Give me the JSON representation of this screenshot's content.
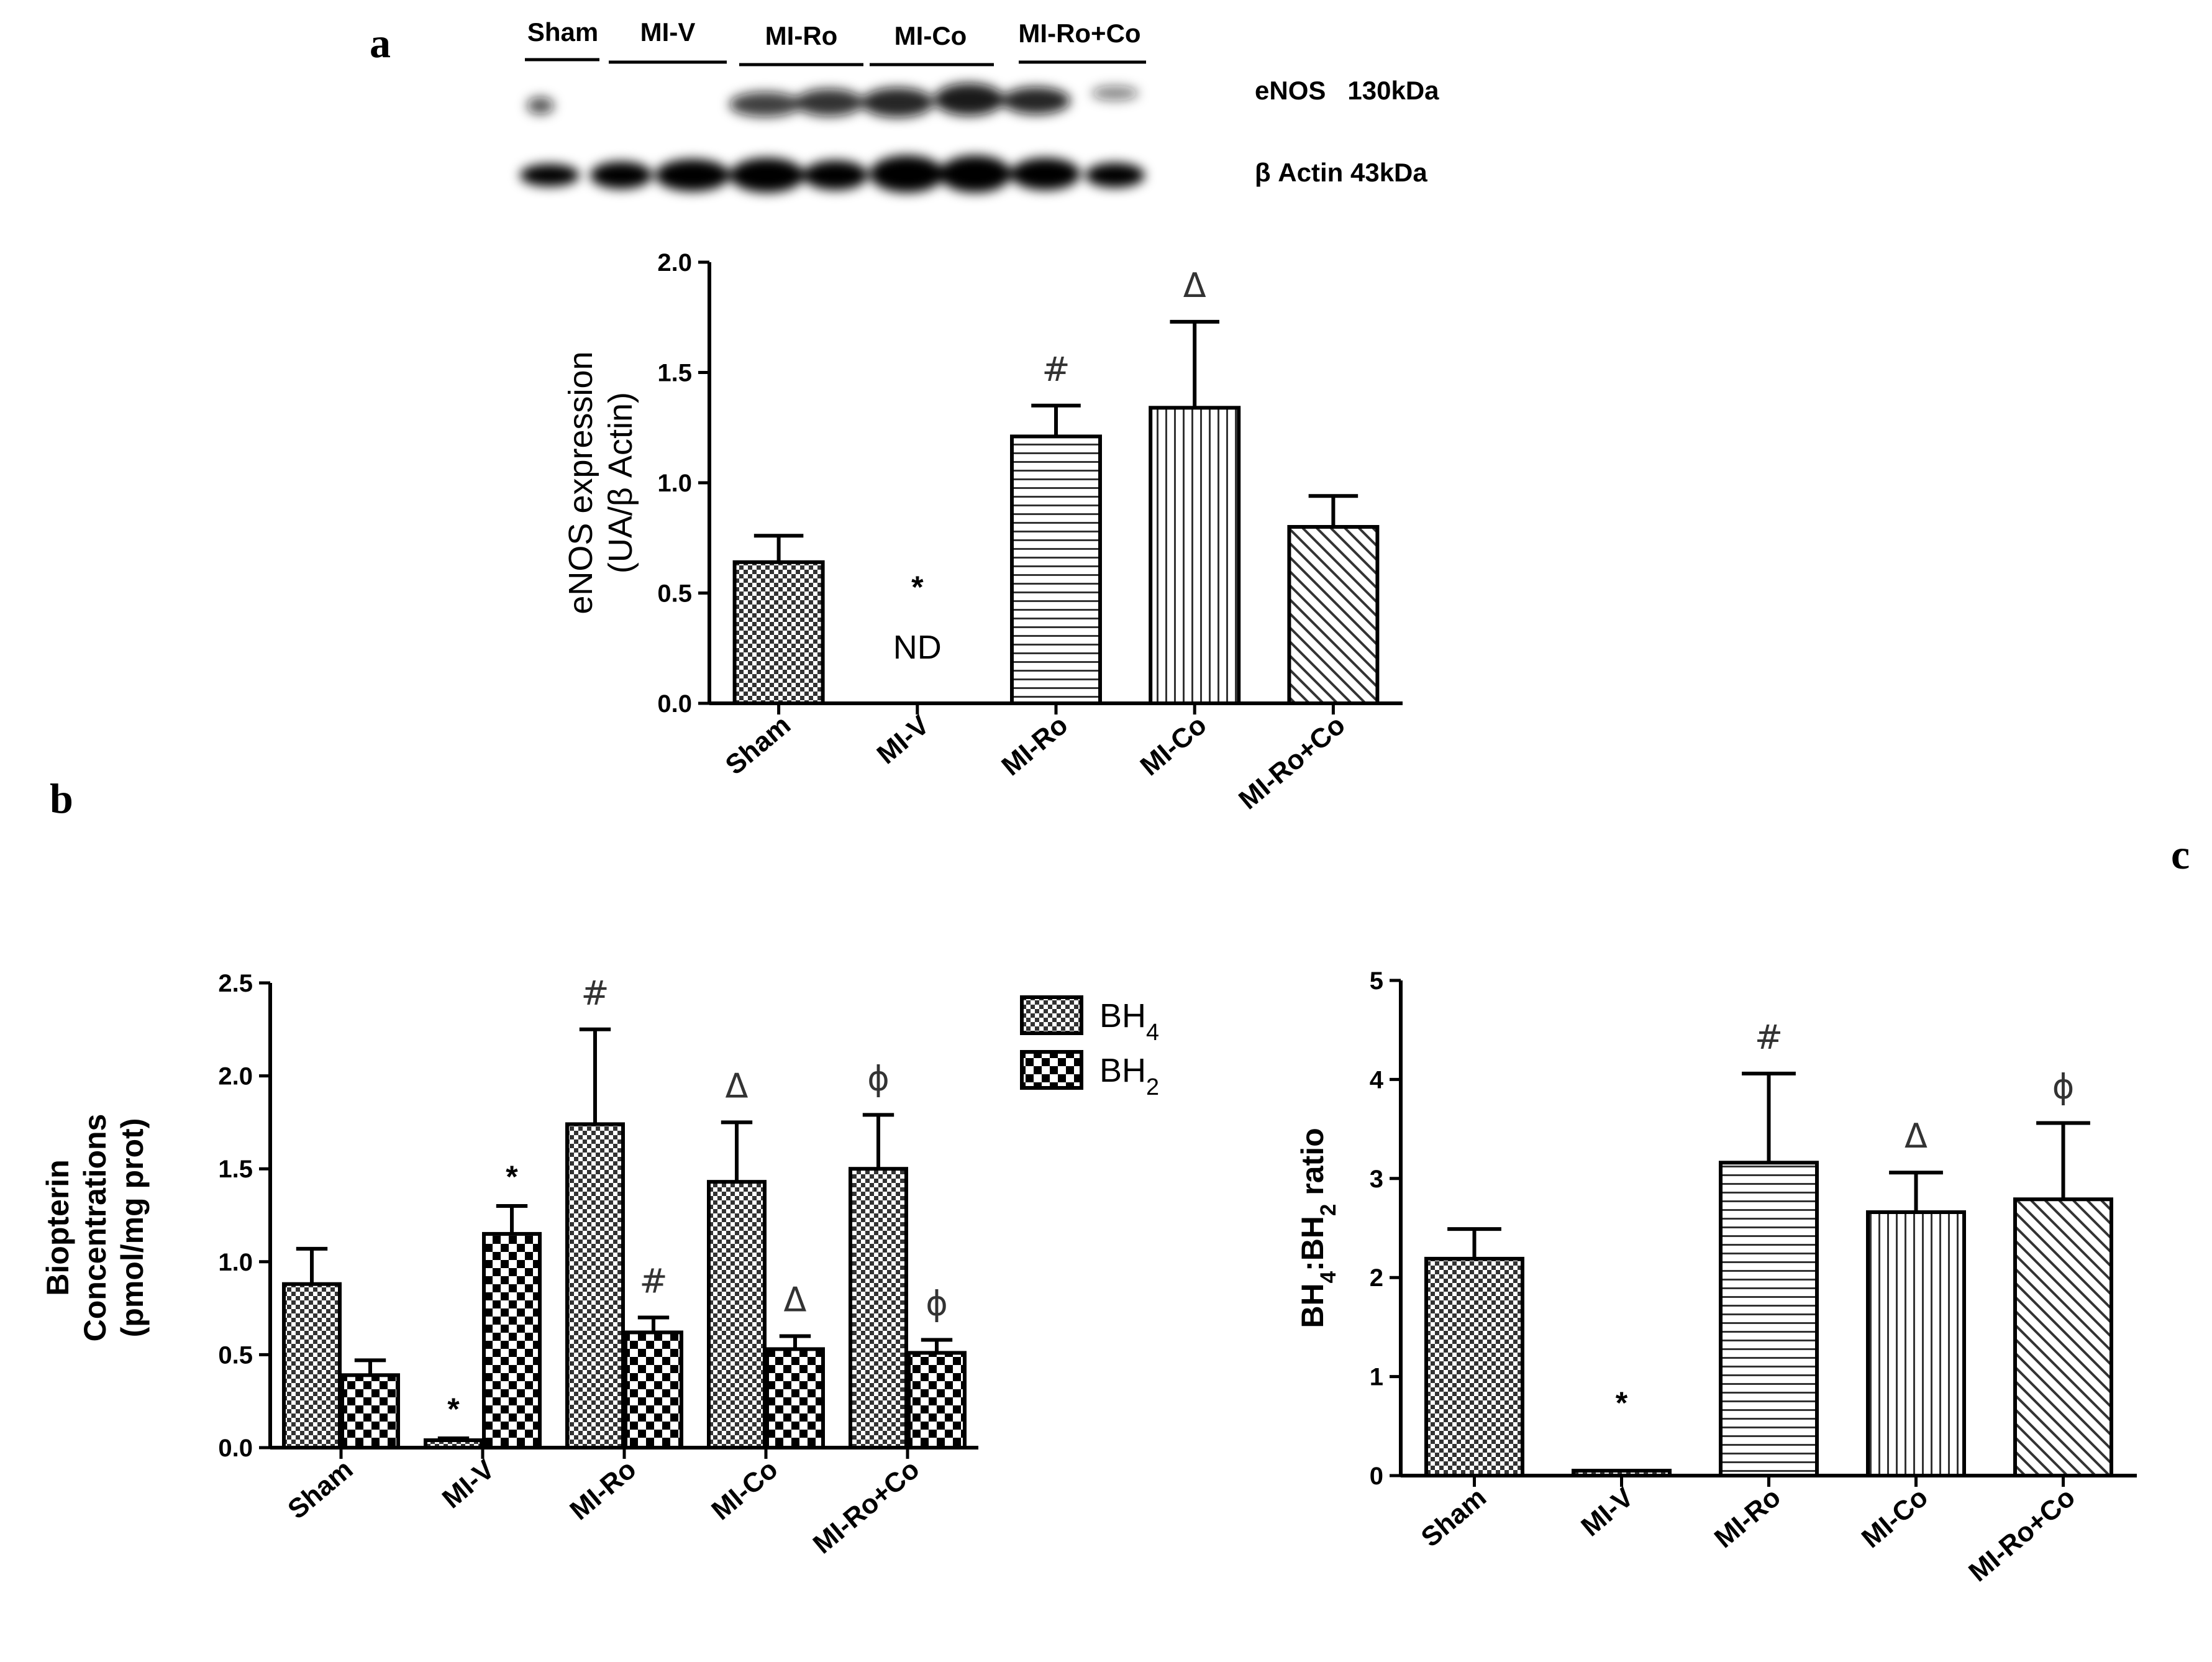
{
  "panel_letters": {
    "a": "a",
    "b": "b",
    "c": "c"
  },
  "blot": {
    "lane_groups": [
      "Sham",
      "MI-V",
      "MI-Ro",
      "MI-Co",
      "MI-Ro+Co"
    ],
    "rows": [
      "eNOS   130kDa",
      "β Actin 43kDa"
    ]
  },
  "chart_data": [
    {
      "panel": "a",
      "type": "bar",
      "categories": [
        "Sham",
        "MI-V",
        "MI-Ro",
        "MI-Co",
        "MI-Ro+Co"
      ],
      "values": [
        0.64,
        0,
        1.21,
        1.34,
        0.8
      ],
      "errors": [
        0.12,
        0,
        0.14,
        0.39,
        0.14
      ],
      "patterns": [
        "checker",
        "none",
        "hlines",
        "vlines",
        "diag"
      ],
      "annotations": [
        "",
        "*",
        "#",
        "Δ",
        ""
      ],
      "value_labels": [
        "",
        "ND",
        "",
        "",
        ""
      ],
      "ylabel_line1": "eNOS expression",
      "ylabel_line2": "(UA/β Actin)",
      "ylim": [
        0,
        2.0
      ],
      "yticks": [
        "0.0",
        "0.5",
        "1.0",
        "1.5",
        "2.0"
      ]
    },
    {
      "panel": "b",
      "type": "bar",
      "categories": [
        "Sham",
        "MI-V",
        "MI-Ro",
        "MI-Co",
        "MI-Ro+Co"
      ],
      "series": [
        {
          "name": "BH4",
          "values": [
            0.88,
            0.04,
            1.74,
            1.43,
            1.5
          ],
          "errors": [
            0.19,
            0.01,
            0.51,
            0.32,
            0.29
          ],
          "annotations": [
            "",
            "*",
            "#",
            "Δ",
            "ϕ"
          ]
        },
        {
          "name": "BH2",
          "values": [
            0.39,
            1.15,
            0.62,
            0.53,
            0.51
          ],
          "errors": [
            0.08,
            0.15,
            0.08,
            0.07,
            0.07
          ],
          "annotations": [
            "",
            "*",
            "#",
            "Δ",
            "ϕ"
          ]
        }
      ],
      "ylabel_line1": "Biopterin",
      "ylabel_line2": "Concentrations",
      "ylabel_line3": "(pmol/mg prot)",
      "ylim": [
        0,
        2.5
      ],
      "yticks": [
        "0.0",
        "0.5",
        "1.0",
        "1.5",
        "2.0",
        "2.5"
      ],
      "legend": [
        "BH4",
        "BH2"
      ],
      "legend_position": "top-right"
    },
    {
      "panel": "c",
      "type": "bar",
      "categories": [
        "Sham",
        "MI-V",
        "MI-Ro",
        "MI-Co",
        "MI-Ro+Co"
      ],
      "values": [
        2.19,
        0.05,
        3.16,
        2.66,
        2.79
      ],
      "errors": [
        0.3,
        0,
        0.9,
        0.4,
        0.77
      ],
      "patterns": [
        "checker",
        "checker",
        "hlines",
        "vlines",
        "diag"
      ],
      "annotations": [
        "",
        "*",
        "#",
        "Δ",
        "ϕ"
      ],
      "ylabel": "BH4:BH2 ratio",
      "ylim": [
        0,
        5
      ],
      "yticks": [
        "0",
        "1",
        "2",
        "3",
        "4",
        "5"
      ]
    }
  ]
}
